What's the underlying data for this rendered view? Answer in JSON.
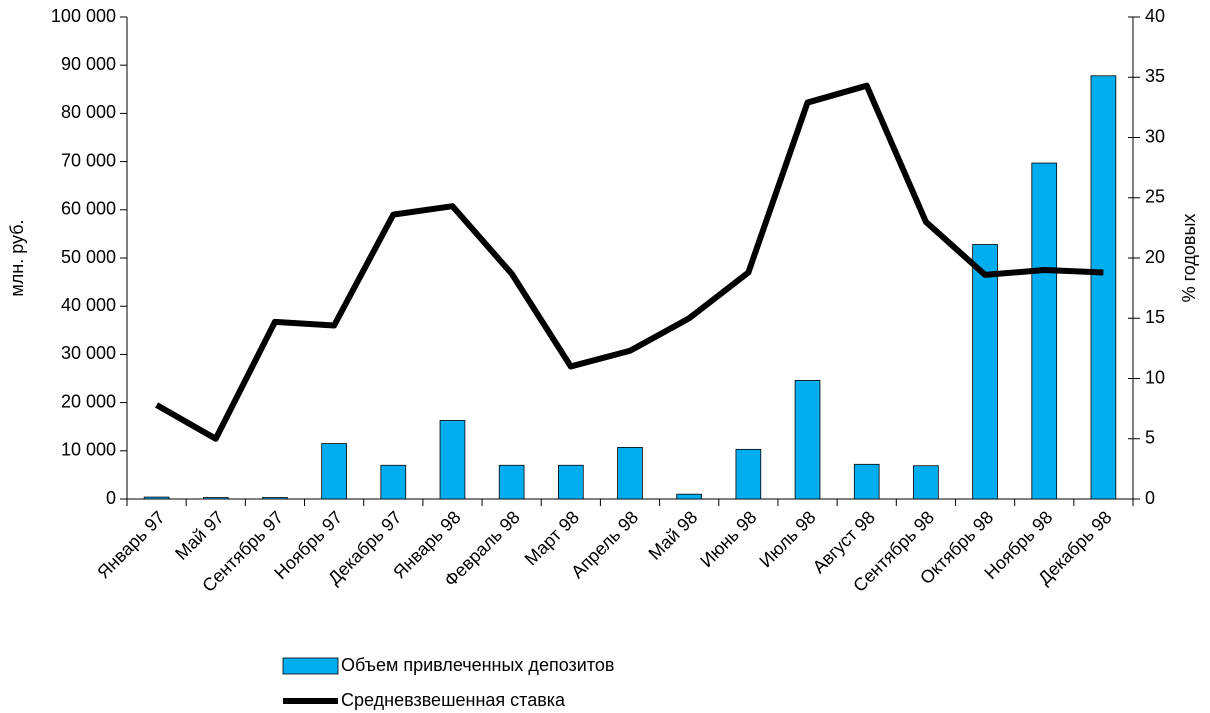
{
  "chart_data": {
    "type": "bar_line",
    "y_label": "млн. руб.",
    "y2_label": "% годовых",
    "categories": [
      "Январь 97",
      "Май 97",
      "Сентябрь 97",
      "Ноябрь 97",
      "Декабрь 97",
      "Январь 98",
      "Февраль 98",
      "Март 98",
      "Апрель 98",
      "Май 98",
      "Июнь 98",
      "Июль 98",
      "Август 98",
      "Сентябрь 98",
      "Октябрь 98",
      "Ноябрь 98",
      "Декабрь 98"
    ],
    "series": [
      {
        "name": "Объем привлеченных депозитов",
        "type": "bar",
        "color": "#00aeef",
        "values": [
          400,
          300,
          300,
          11500,
          7000,
          16300,
          7000,
          7000,
          10700,
          1000,
          10300,
          24600,
          7200,
          6900,
          52800,
          69700,
          87800
        ]
      },
      {
        "name": "Средневзвешенная ставка",
        "type": "line",
        "axis": "y2",
        "color": "#000000",
        "values": [
          7.8,
          5.0,
          14.7,
          14.4,
          23.6,
          24.3,
          18.7,
          11.0,
          12.3,
          15.0,
          18.8,
          32.9,
          34.3,
          23.0,
          18.6,
          19.0,
          18.8
        ]
      }
    ],
    "ylim": [
      0,
      100000
    ],
    "yticks": [
      0,
      {
        "value": 10000,
        "label": "10 000"
      },
      {
        "value": 20000,
        "label": "20 000"
      },
      {
        "value": 30000,
        "label": "30 000"
      },
      {
        "value": 40000,
        "label": "40 000"
      },
      {
        "value": 50000,
        "label": "50 000"
      },
      {
        "value": 60000,
        "label": "60 000"
      },
      {
        "value": 70000,
        "label": "70 000"
      },
      {
        "value": 80000,
        "label": "80 000"
      },
      {
        "value": 90000,
        "label": "90 000"
      },
      {
        "value": 100000,
        "label": "100 000"
      }
    ],
    "y2lim": [
      0,
      40
    ],
    "y2ticks": [
      0,
      5,
      10,
      15,
      20,
      25,
      30,
      35,
      40
    ],
    "legend": "bottom"
  }
}
